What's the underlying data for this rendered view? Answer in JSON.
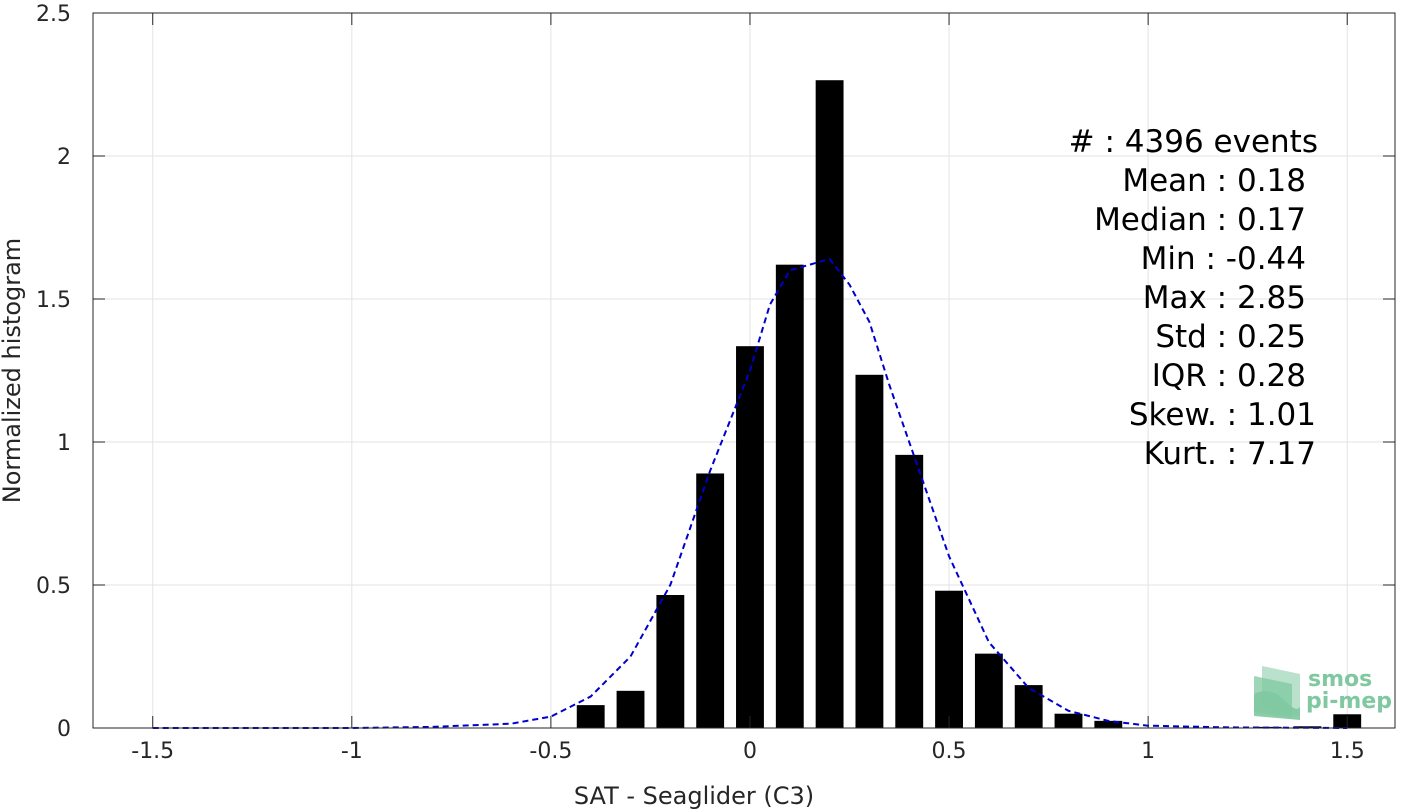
{
  "chart_data": {
    "type": "bar",
    "title": "",
    "xlabel": "SAT - Seaglider (C3)",
    "ylabel": "Normalized histogram",
    "xlim": [
      -1.65,
      1.62
    ],
    "ylim": [
      0,
      2.5
    ],
    "xticks": [
      -1.5,
      -1,
      -0.5,
      0,
      0.5,
      1,
      1.5
    ],
    "xtick_labels": [
      "-1.5",
      "-1",
      "-0.5",
      "0",
      "0.5",
      "1",
      "1.5"
    ],
    "yticks": [
      0,
      0.5,
      1,
      1.5,
      2,
      2.5
    ],
    "ytick_labels": [
      "0",
      "0.5",
      "1",
      "1.5",
      "2",
      "2.5"
    ],
    "grid": true,
    "bar_width": 0.07,
    "bar_color": "#000000",
    "fit_color": "#0000cc",
    "bars": {
      "x": [
        -0.4,
        -0.3,
        -0.2,
        -0.1,
        0.0,
        0.1,
        0.2,
        0.3,
        0.4,
        0.5,
        0.6,
        0.7,
        0.8,
        0.9,
        1.3,
        1.4,
        1.5
      ],
      "y": [
        0.08,
        0.13,
        0.465,
        0.89,
        1.335,
        1.62,
        2.265,
        1.235,
        0.955,
        0.48,
        0.26,
        0.15,
        0.05,
        0.025,
        0.004,
        0.006,
        0.048
      ]
    },
    "fit_curve": {
      "x": [
        -1.5,
        -1.0,
        -0.8,
        -0.6,
        -0.5,
        -0.4,
        -0.3,
        -0.2,
        -0.1,
        0.0,
        0.05,
        0.1,
        0.15,
        0.2,
        0.25,
        0.3,
        0.35,
        0.4,
        0.5,
        0.6,
        0.7,
        0.8,
        0.9,
        1.0,
        1.2,
        1.5
      ],
      "y": [
        0.0,
        0.0,
        0.004,
        0.015,
        0.04,
        0.11,
        0.25,
        0.5,
        0.9,
        1.25,
        1.48,
        1.6,
        1.62,
        1.64,
        1.55,
        1.42,
        1.2,
        1.0,
        0.6,
        0.3,
        0.14,
        0.06,
        0.025,
        0.008,
        0.002,
        0.0
      ]
    },
    "stats": [
      {
        "label": "#  : 4396 events"
      },
      {
        "label": "Mean : 0.18"
      },
      {
        "label": "Median : 0.17"
      },
      {
        "label": "Min : -0.44"
      },
      {
        "label": "Max : 2.85"
      },
      {
        "label": "Std : 0.25"
      },
      {
        "label": "IQR : 0.28"
      },
      {
        "label": "Skew. : 1.01"
      },
      {
        "label": "Kurt. : 7.17"
      }
    ],
    "legend": "none",
    "logo": {
      "text_top": "smos",
      "text_bottom": "pi-mep",
      "color": "#7fc8a0"
    }
  }
}
